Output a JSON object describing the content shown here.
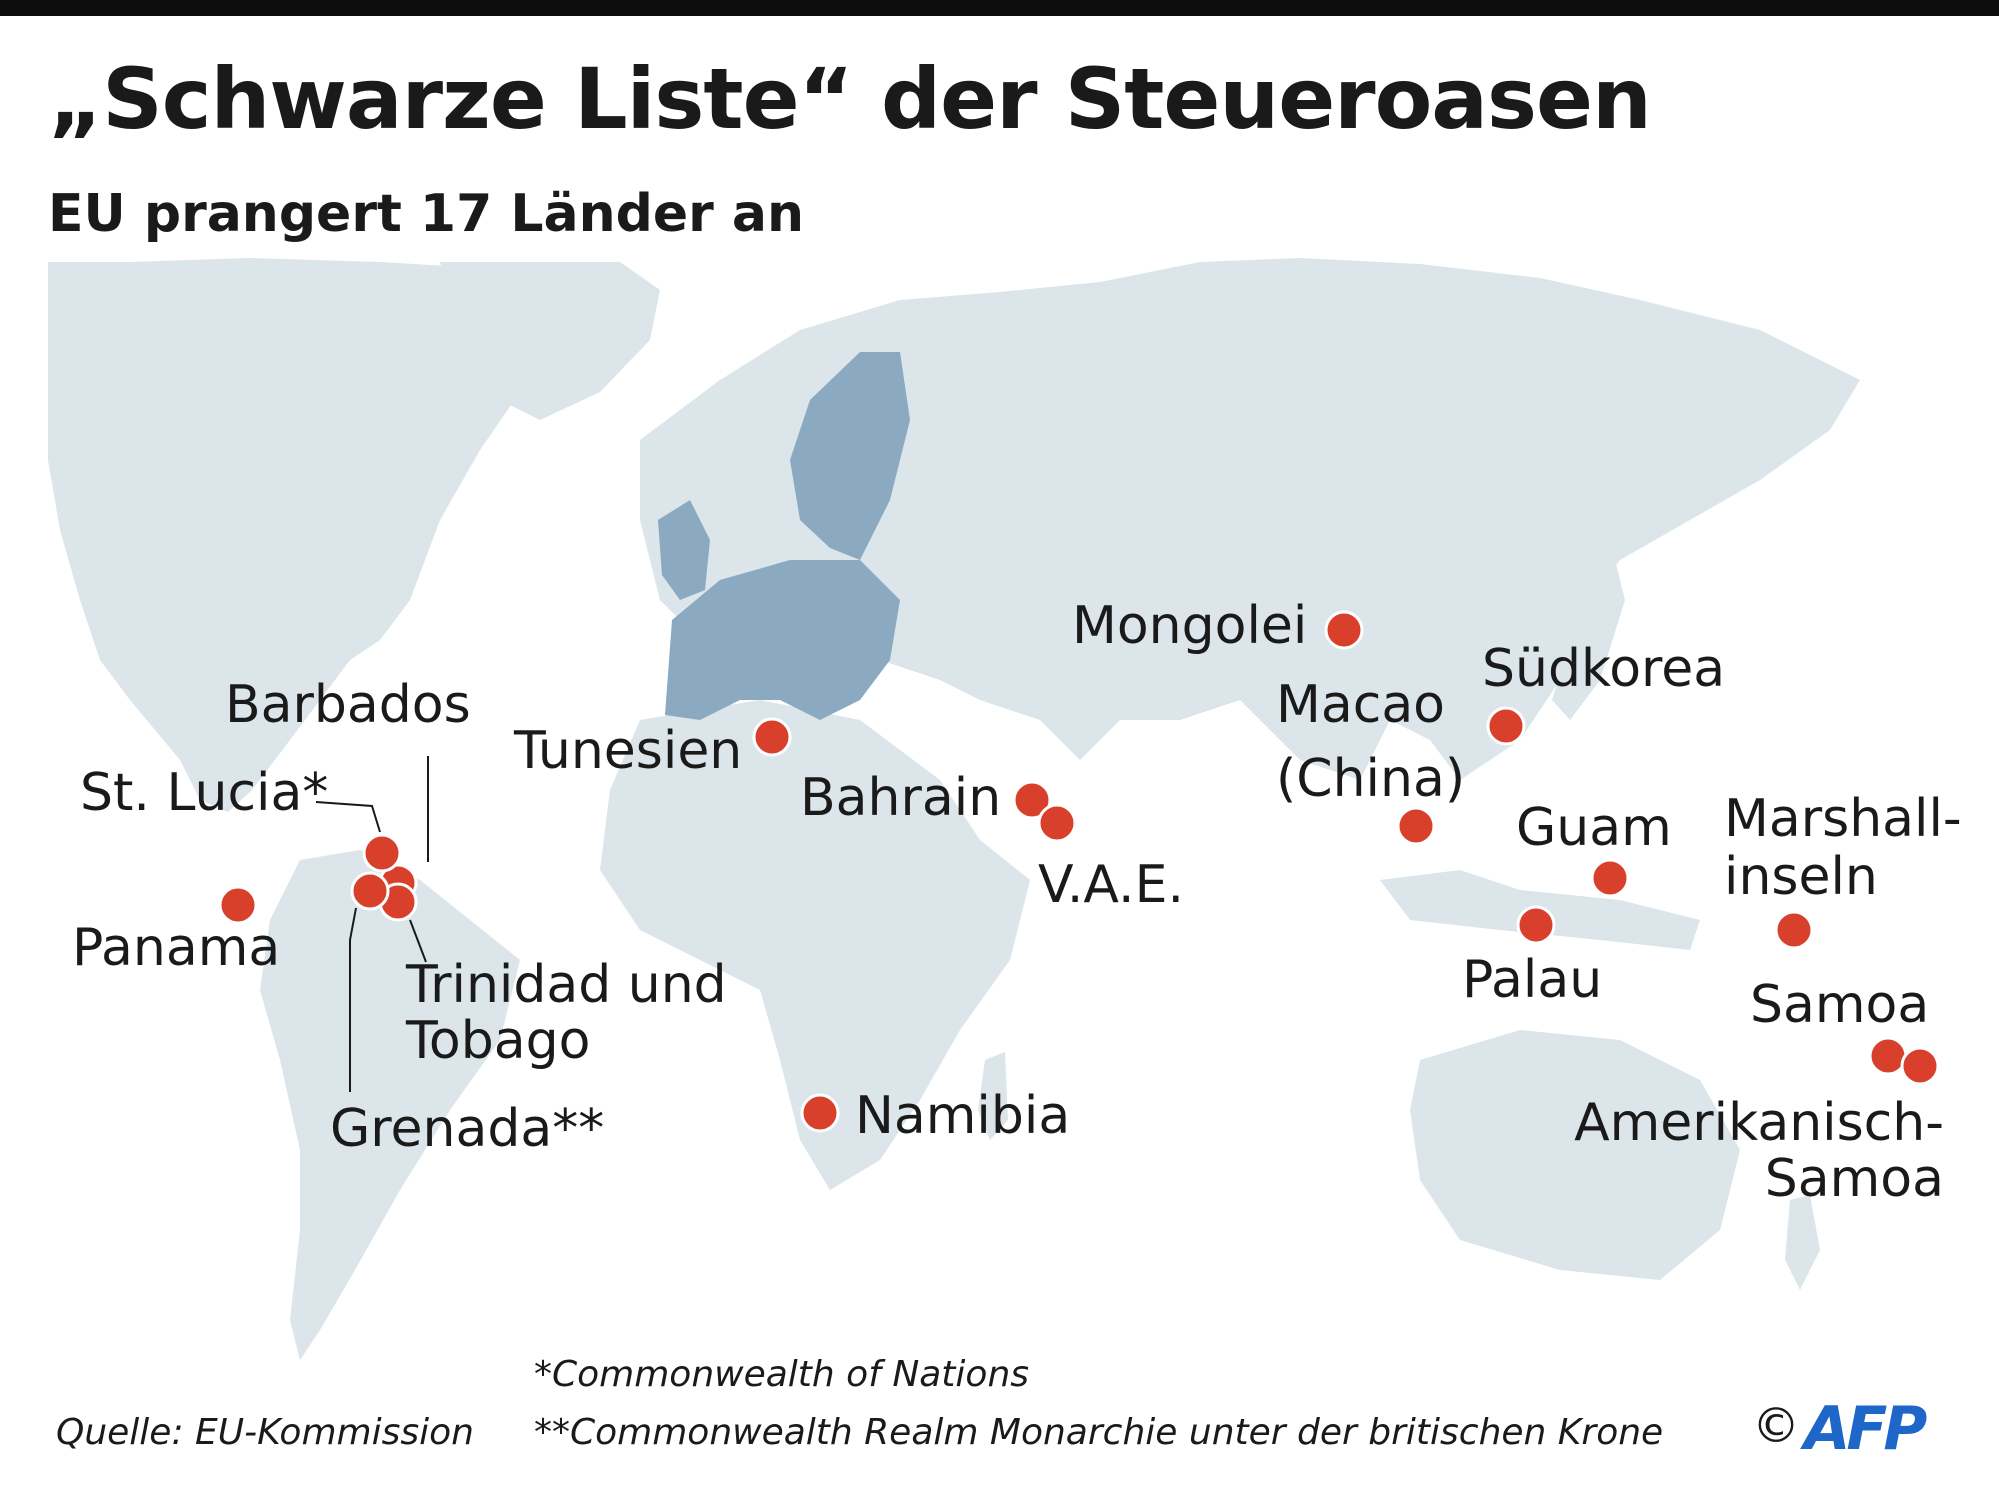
{
  "header": {
    "title": "„Schwarze Liste“ der Steueroasen",
    "subtitle": "EU prangert 17 Länder an"
  },
  "map": {
    "land_color": "#dbe5ea",
    "eu_color": "#8ba9c0",
    "marker_color": "#d9402b",
    "places": [
      {
        "id": "barbados",
        "label": "Barbados"
      },
      {
        "id": "st-lucia",
        "label": "St. Lucia*"
      },
      {
        "id": "panama",
        "label": "Panama"
      },
      {
        "id": "trinidad",
        "label": [
          "Trinidad und",
          "Tobago"
        ]
      },
      {
        "id": "grenada",
        "label": "Grenada**"
      },
      {
        "id": "tunesien",
        "label": "Tunesien"
      },
      {
        "id": "bahrain",
        "label": "Bahrain"
      },
      {
        "id": "vae",
        "label": "V.A.E."
      },
      {
        "id": "namibia",
        "label": "Namibia"
      },
      {
        "id": "mongolei",
        "label": "Mongolei"
      },
      {
        "id": "macao",
        "label": [
          "Macao",
          "(China)"
        ]
      },
      {
        "id": "suedkorea",
        "label": "Südkorea"
      },
      {
        "id": "guam",
        "label": "Guam"
      },
      {
        "id": "palau",
        "label": "Palau"
      },
      {
        "id": "marshallinseln",
        "label": [
          "Marshall-",
          "inseln"
        ]
      },
      {
        "id": "samoa",
        "label": "Samoa"
      },
      {
        "id": "amerikanisch-samoa",
        "label": [
          "Amerikanisch-",
          "Samoa"
        ]
      }
    ]
  },
  "footer": {
    "source": "Quelle: EU-Kommission",
    "note1": "*Commonwealth of Nations",
    "note2": "**Commonwealth Realm Monarchie unter der britischen Krone",
    "copyright": "©",
    "logo": "AFP",
    "logo_color": "#1f66c9"
  }
}
